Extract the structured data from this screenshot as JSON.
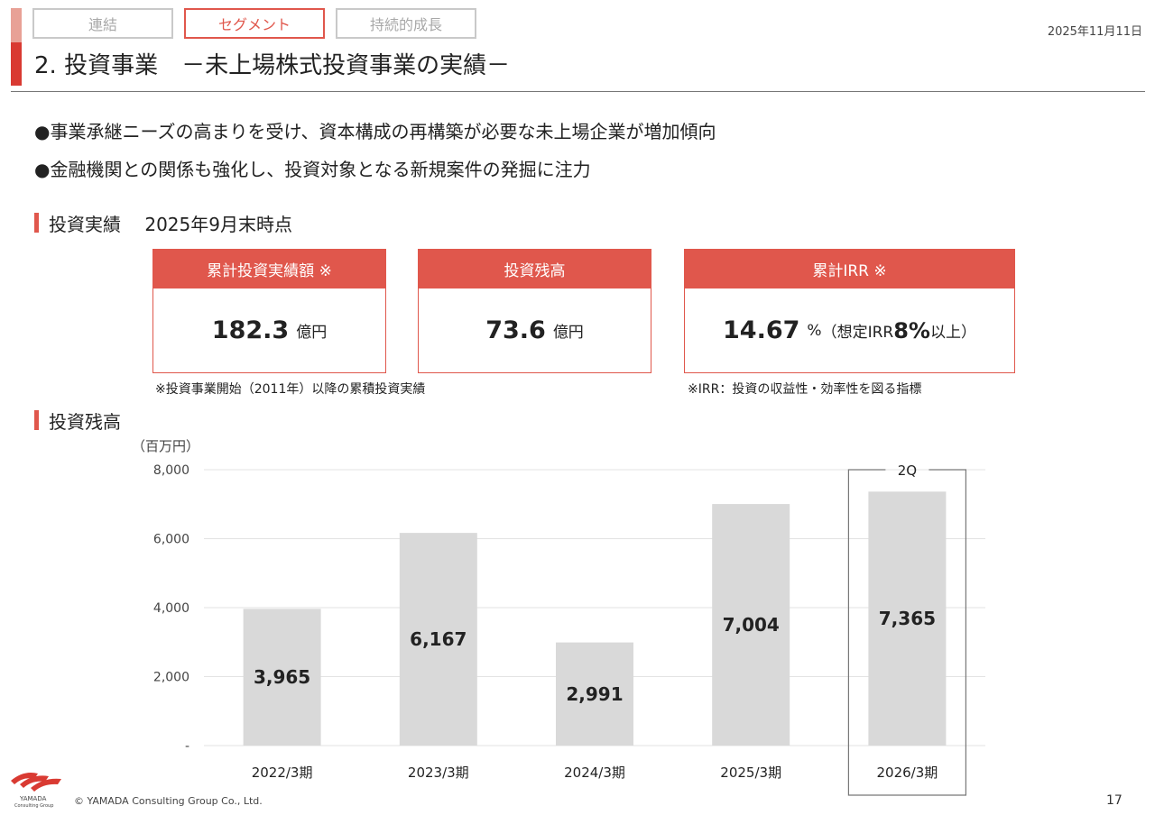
{
  "tabs": [
    {
      "label": "連結",
      "active": false
    },
    {
      "label": "セグメント",
      "active": true
    },
    {
      "label": "持続的成長",
      "active": false
    }
  ],
  "date": "2025年11月11日",
  "title": "2. 投資事業　－未上場株式投資事業の実績－",
  "bullets": [
    "●事業承継ニーズの高まりを受け、資本構成の再構築が必要な未上場企業が増加傾向",
    "●金融機関との関係も強化し、投資対象となる新規案件の発掘に注力"
  ],
  "results_section": {
    "title": "投資実績",
    "as_of": "2025年9月末時点"
  },
  "cards": [
    {
      "header": "累計投資実績額 ※",
      "value": "182.3",
      "unit": "億円",
      "suffix": "",
      "suffix_bold": "",
      "suffix_end": ""
    },
    {
      "header": "投資残高",
      "value": "73.6",
      "unit": "億円",
      "suffix": "",
      "suffix_bold": "",
      "suffix_end": ""
    },
    {
      "header": "累計IRR ※",
      "value": "14.67",
      "unit": "%",
      "suffix": "（想定IRR ",
      "suffix_bold": "8%",
      "suffix_end": "以上）"
    }
  ],
  "notes": {
    "left": "※投資事業開始（2011年）以降の累積投資実績",
    "right": "※IRR：投資の収益性・効率性を図る指標"
  },
  "chart_section_title": "投資残高",
  "chart_data": {
    "type": "bar",
    "unit_label": "（百万円）",
    "categories": [
      "2022/3期",
      "2023/3期",
      "2024/3期",
      "2025/3期",
      "2026/3期"
    ],
    "values": [
      3965,
      6167,
      2991,
      7004,
      7365
    ],
    "value_labels": [
      "3,965",
      "6,167",
      "2,991",
      "7,004",
      "7,365"
    ],
    "ylim": [
      0,
      8000
    ],
    "yticks": [
      0,
      2000,
      4000,
      6000,
      8000
    ],
    "ytick_labels": [
      "-",
      "2,000",
      "4,000",
      "6,000",
      "8,000"
    ],
    "grid": true,
    "bar_color": "#d9d9d9",
    "highlight": {
      "category": "2026/3期",
      "label": "2Q"
    }
  },
  "footer": {
    "logo_text": "YAMADA",
    "logo_sub": "Consulting Group",
    "copyright": "© YAMADA Consulting Group Co., Ltd.",
    "page": "17"
  },
  "colors": {
    "accent": "#e0574c",
    "accent_light": "#e8a196",
    "bar": "#d9d9d9",
    "grid": "#e3e3e3"
  }
}
